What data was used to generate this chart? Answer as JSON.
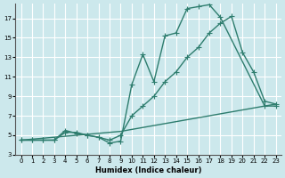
{
  "xlabel": "Humidex (Indice chaleur)",
  "background_color": "#cce8ec",
  "grid_color": "#ffffff",
  "line_color": "#2e7d6e",
  "xlim": [
    -0.5,
    23.5
  ],
  "ylim": [
    3,
    18.5
  ],
  "yticks": [
    3,
    5,
    7,
    9,
    11,
    13,
    15,
    17
  ],
  "xticks": [
    0,
    1,
    2,
    3,
    4,
    5,
    6,
    7,
    8,
    9,
    10,
    11,
    12,
    13,
    14,
    15,
    16,
    17,
    18,
    19,
    20,
    21,
    22,
    23
  ],
  "line1_x": [
    0,
    1,
    2,
    3,
    4,
    5,
    6,
    7,
    8,
    9,
    10,
    11,
    12,
    13,
    14,
    15,
    16,
    17,
    18,
    22,
    23
  ],
  "line1_y": [
    4.5,
    4.5,
    4.5,
    4.5,
    5.5,
    5.2,
    5.0,
    4.8,
    4.2,
    4.4,
    10.2,
    13.3,
    10.5,
    15.2,
    15.5,
    18.0,
    18.2,
    18.4,
    17.1,
    8.0,
    8.0
  ],
  "line2_x": [
    0,
    1,
    2,
    3,
    4,
    5,
    6,
    7,
    8,
    9,
    10,
    11,
    12,
    13,
    14,
    15,
    16,
    17,
    18,
    19,
    20,
    21,
    22,
    23
  ],
  "line2_y": [
    4.5,
    4.5,
    4.5,
    4.5,
    5.3,
    5.3,
    5.0,
    4.8,
    4.5,
    5.0,
    7.0,
    8.0,
    9.0,
    10.5,
    11.5,
    13.0,
    14.0,
    15.5,
    16.5,
    17.2,
    13.5,
    11.5,
    8.5,
    8.2
  ],
  "line3_x": [
    0,
    1,
    2,
    3,
    4,
    5,
    6,
    7,
    8,
    9,
    10,
    11,
    12,
    13,
    14,
    15,
    16,
    17,
    18,
    19,
    20,
    21,
    22,
    23
  ],
  "line3_y": [
    4.5,
    4.6,
    4.7,
    4.8,
    4.9,
    5.0,
    5.1,
    5.2,
    5.3,
    5.4,
    5.6,
    5.8,
    6.0,
    6.2,
    6.4,
    6.6,
    6.8,
    7.0,
    7.2,
    7.4,
    7.6,
    7.8,
    8.0,
    8.2
  ],
  "marker_size": 3,
  "linewidth": 1.0
}
